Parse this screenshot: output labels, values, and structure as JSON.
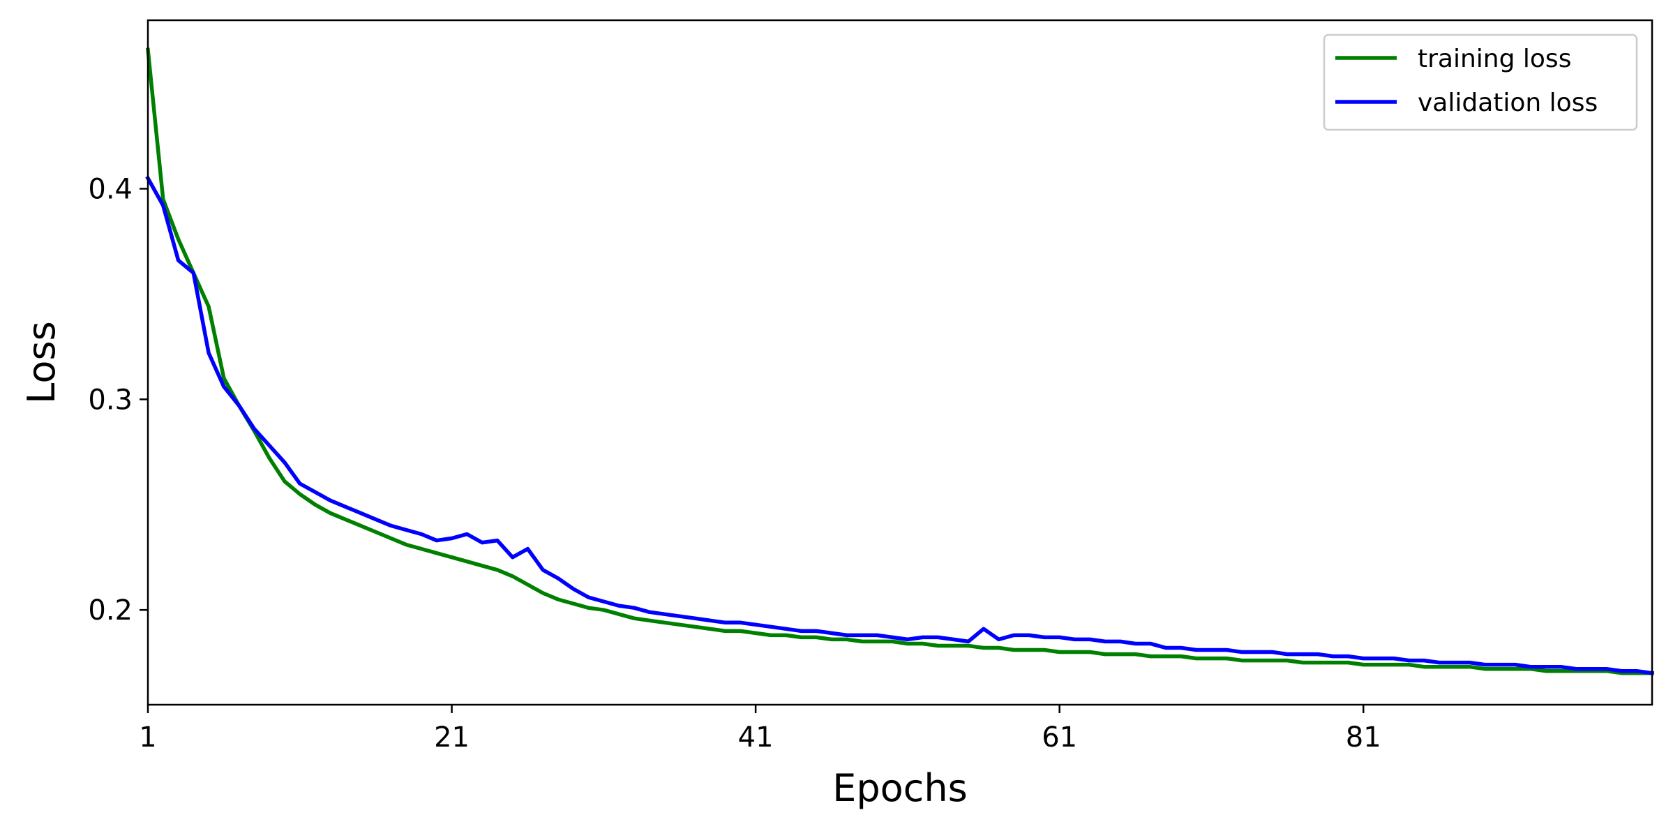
{
  "chart_data": {
    "type": "line",
    "title": "",
    "xlabel": "Epochs",
    "ylabel": "Loss",
    "xlim": [
      1,
      100
    ],
    "ylim": [
      0.155,
      0.48
    ],
    "xticks": [
      1,
      21,
      41,
      61,
      81
    ],
    "xtick_labels": [
      "1",
      "21",
      "41",
      "61",
      "81"
    ],
    "yticks": [
      0.2,
      0.3,
      0.4
    ],
    "ytick_labels": [
      "0.2",
      "0.3",
      "0.4"
    ],
    "grid": false,
    "legend": {
      "position": "top-right"
    },
    "series": [
      {
        "name": "training loss",
        "color": "#008000",
        "x": [
          1,
          2,
          3,
          4,
          5,
          6,
          7,
          8,
          9,
          10,
          11,
          12,
          13,
          14,
          15,
          16,
          17,
          18,
          19,
          20,
          21,
          22,
          23,
          24,
          25,
          26,
          27,
          28,
          29,
          30,
          31,
          32,
          33,
          34,
          35,
          36,
          37,
          38,
          39,
          40,
          41,
          42,
          43,
          44,
          45,
          46,
          47,
          48,
          49,
          50,
          51,
          52,
          53,
          54,
          55,
          56,
          57,
          58,
          59,
          60,
          61,
          62,
          63,
          64,
          65,
          66,
          67,
          68,
          69,
          70,
          71,
          72,
          73,
          74,
          75,
          76,
          77,
          78,
          79,
          80,
          81,
          82,
          83,
          84,
          85,
          86,
          87,
          88,
          89,
          90,
          91,
          92,
          93,
          94,
          95,
          96,
          97,
          98,
          99,
          100
        ],
        "y": [
          0.466,
          0.395,
          0.376,
          0.36,
          0.344,
          0.31,
          0.297,
          0.285,
          0.272,
          0.261,
          0.255,
          0.25,
          0.246,
          0.243,
          0.24,
          0.237,
          0.234,
          0.231,
          0.229,
          0.227,
          0.225,
          0.223,
          0.221,
          0.219,
          0.216,
          0.212,
          0.208,
          0.205,
          0.203,
          0.201,
          0.2,
          0.198,
          0.196,
          0.195,
          0.194,
          0.193,
          0.192,
          0.191,
          0.19,
          0.19,
          0.189,
          0.188,
          0.188,
          0.187,
          0.187,
          0.186,
          0.186,
          0.185,
          0.185,
          0.185,
          0.184,
          0.184,
          0.183,
          0.183,
          0.183,
          0.182,
          0.182,
          0.181,
          0.181,
          0.181,
          0.18,
          0.18,
          0.18,
          0.179,
          0.179,
          0.179,
          0.178,
          0.178,
          0.178,
          0.177,
          0.177,
          0.177,
          0.176,
          0.176,
          0.176,
          0.176,
          0.175,
          0.175,
          0.175,
          0.175,
          0.174,
          0.174,
          0.174,
          0.174,
          0.173,
          0.173,
          0.173,
          0.173,
          0.172,
          0.172,
          0.172,
          0.172,
          0.171,
          0.171,
          0.171,
          0.171,
          0.171,
          0.17,
          0.17,
          0.17
        ]
      },
      {
        "name": "validation loss",
        "color": "#0000ff",
        "x": [
          1,
          2,
          3,
          4,
          5,
          6,
          7,
          8,
          9,
          10,
          11,
          12,
          13,
          14,
          15,
          16,
          17,
          18,
          19,
          20,
          21,
          22,
          23,
          24,
          25,
          26,
          27,
          28,
          29,
          30,
          31,
          32,
          33,
          34,
          35,
          36,
          37,
          38,
          39,
          40,
          41,
          42,
          43,
          44,
          45,
          46,
          47,
          48,
          49,
          50,
          51,
          52,
          53,
          54,
          55,
          56,
          57,
          58,
          59,
          60,
          61,
          62,
          63,
          64,
          65,
          66,
          67,
          68,
          69,
          70,
          71,
          72,
          73,
          74,
          75,
          76,
          77,
          78,
          79,
          80,
          81,
          82,
          83,
          84,
          85,
          86,
          87,
          88,
          89,
          90,
          91,
          92,
          93,
          94,
          95,
          96,
          97,
          98,
          99,
          100
        ],
        "y": [
          0.405,
          0.392,
          0.366,
          0.36,
          0.322,
          0.306,
          0.297,
          0.286,
          0.278,
          0.27,
          0.26,
          0.256,
          0.252,
          0.249,
          0.246,
          0.243,
          0.24,
          0.238,
          0.236,
          0.233,
          0.234,
          0.236,
          0.232,
          0.233,
          0.225,
          0.229,
          0.219,
          0.215,
          0.21,
          0.206,
          0.204,
          0.202,
          0.201,
          0.199,
          0.198,
          0.197,
          0.196,
          0.195,
          0.194,
          0.194,
          0.193,
          0.192,
          0.191,
          0.19,
          0.19,
          0.189,
          0.188,
          0.188,
          0.188,
          0.187,
          0.186,
          0.187,
          0.187,
          0.186,
          0.185,
          0.191,
          0.186,
          0.188,
          0.188,
          0.187,
          0.187,
          0.186,
          0.186,
          0.185,
          0.185,
          0.184,
          0.184,
          0.182,
          0.182,
          0.181,
          0.181,
          0.181,
          0.18,
          0.18,
          0.18,
          0.179,
          0.179,
          0.179,
          0.178,
          0.178,
          0.177,
          0.177,
          0.177,
          0.176,
          0.176,
          0.175,
          0.175,
          0.175,
          0.174,
          0.174,
          0.174,
          0.173,
          0.173,
          0.173,
          0.172,
          0.172,
          0.172,
          0.171,
          0.171,
          0.17
        ]
      }
    ]
  }
}
